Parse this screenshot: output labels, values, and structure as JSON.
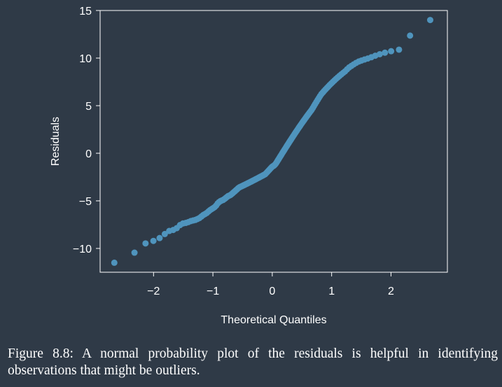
{
  "chart_data": {
    "type": "scatter",
    "title": "",
    "xlabel": "Theoretical Quantiles",
    "ylabel": "Residuals",
    "xlim": [
      -2.9,
      2.95
    ],
    "ylim": [
      -12.5,
      15
    ],
    "x_ticks": [
      -2,
      -1,
      0,
      1,
      2
    ],
    "x_tick_labels": [
      "−2",
      "−1",
      "0",
      "1",
      "2"
    ],
    "y_ticks": [
      -10,
      -5,
      0,
      5,
      10,
      15
    ],
    "y_tick_labels": [
      "−10",
      "−5",
      "0",
      "5",
      "10",
      "15"
    ],
    "grid": false,
    "point_color": "#4f94bd",
    "sample_quantiles": [
      -11.5,
      -9.5,
      -9.0,
      -8.2,
      -8.0,
      -7.4,
      -7.3,
      -7.1,
      -7.0,
      -6.8,
      -6.5,
      -6.3,
      -6.0,
      -5.8,
      -5.6,
      -5.2,
      -5.0,
      -4.9,
      -4.7,
      -4.5,
      -4.4,
      -4.2,
      -4.0,
      -3.8,
      -3.6,
      -3.5,
      -3.4,
      -3.3,
      -3.2,
      -3.1,
      -3.0,
      -2.9,
      -2.8,
      -2.7,
      -2.6,
      -2.5,
      -2.4,
      -2.3,
      -2.2,
      -2.0,
      -1.8,
      -1.6,
      -1.4,
      -1.3,
      -1.1,
      -0.8,
      -0.5,
      -0.2,
      0.1,
      0.4,
      0.7,
      1.0,
      1.3,
      1.6,
      1.9,
      2.2,
      2.5,
      2.8,
      3.1,
      3.4,
      3.7,
      4.0,
      4.3,
      4.6,
      5.0,
      5.4,
      5.8,
      6.2,
      6.5,
      6.8,
      7.1,
      7.4,
      7.7,
      8.0,
      8.3,
      8.6,
      9.0,
      9.3,
      9.6,
      9.8,
      10.0,
      10.3,
      10.6,
      10.9,
      14.0
    ],
    "n_points": 160
  },
  "caption": "Figure 8.8: A normal probability plot of the residuals is helpful in identifying observations that might be outliers."
}
